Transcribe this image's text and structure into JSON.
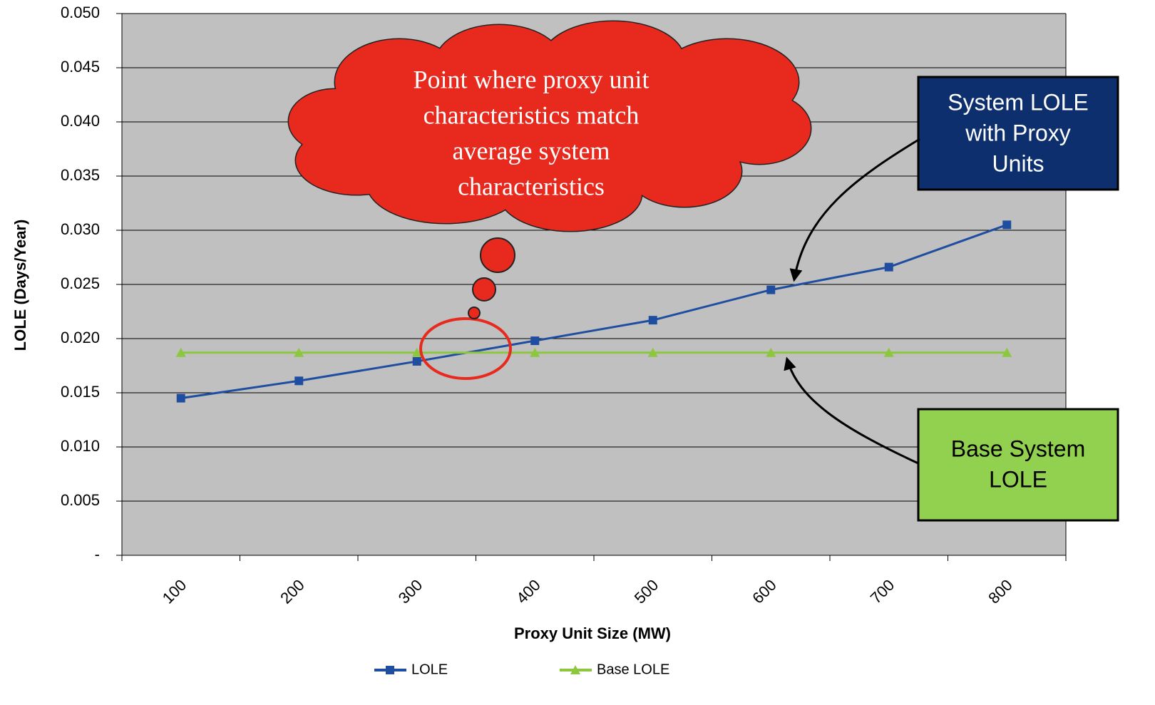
{
  "chart_data": {
    "type": "line",
    "x_label": "Proxy Unit Size (MW)",
    "y_label": "LOLE (Days/Year)",
    "categories": [
      "100",
      "200",
      "300",
      "400",
      "500",
      "600",
      "700",
      "800"
    ],
    "series": [
      {
        "name": "LOLE",
        "color": "#1f4ea0",
        "marker": "square",
        "values": [
          0.0145,
          0.0161,
          0.0179,
          0.0198,
          0.0217,
          0.0245,
          0.0266,
          0.0305
        ]
      },
      {
        "name": "Base LOLE",
        "color": "#8dc63f",
        "marker": "triangle",
        "values": [
          0.0187,
          0.0187,
          0.0187,
          0.0187,
          0.0187,
          0.0187,
          0.0187,
          0.0187
        ]
      }
    ],
    "ylim": [
      0,
      0.05
    ],
    "yticks": [
      {
        "value": 0,
        "label": "-"
      },
      0.005,
      {
        "value": 0.01,
        "label": "0.010"
      },
      0.015,
      {
        "value": 0.02,
        "label": "0.020"
      },
      0.025,
      {
        "value": 0.03,
        "label": "0.030"
      },
      0.035,
      {
        "value": 0.04,
        "label": "0.040"
      },
      0.045,
      {
        "value": 0.05,
        "label": "0.050"
      }
    ],
    "grid": true,
    "legend": "bottom",
    "annotations": {
      "cloud": [
        "Point where proxy unit",
        "characteristics match",
        "average system",
        "characteristics"
      ],
      "lole_box": [
        "System LOLE",
        "with Proxy",
        "Units"
      ],
      "base_box": [
        "Base System",
        "LOLE"
      ]
    }
  }
}
